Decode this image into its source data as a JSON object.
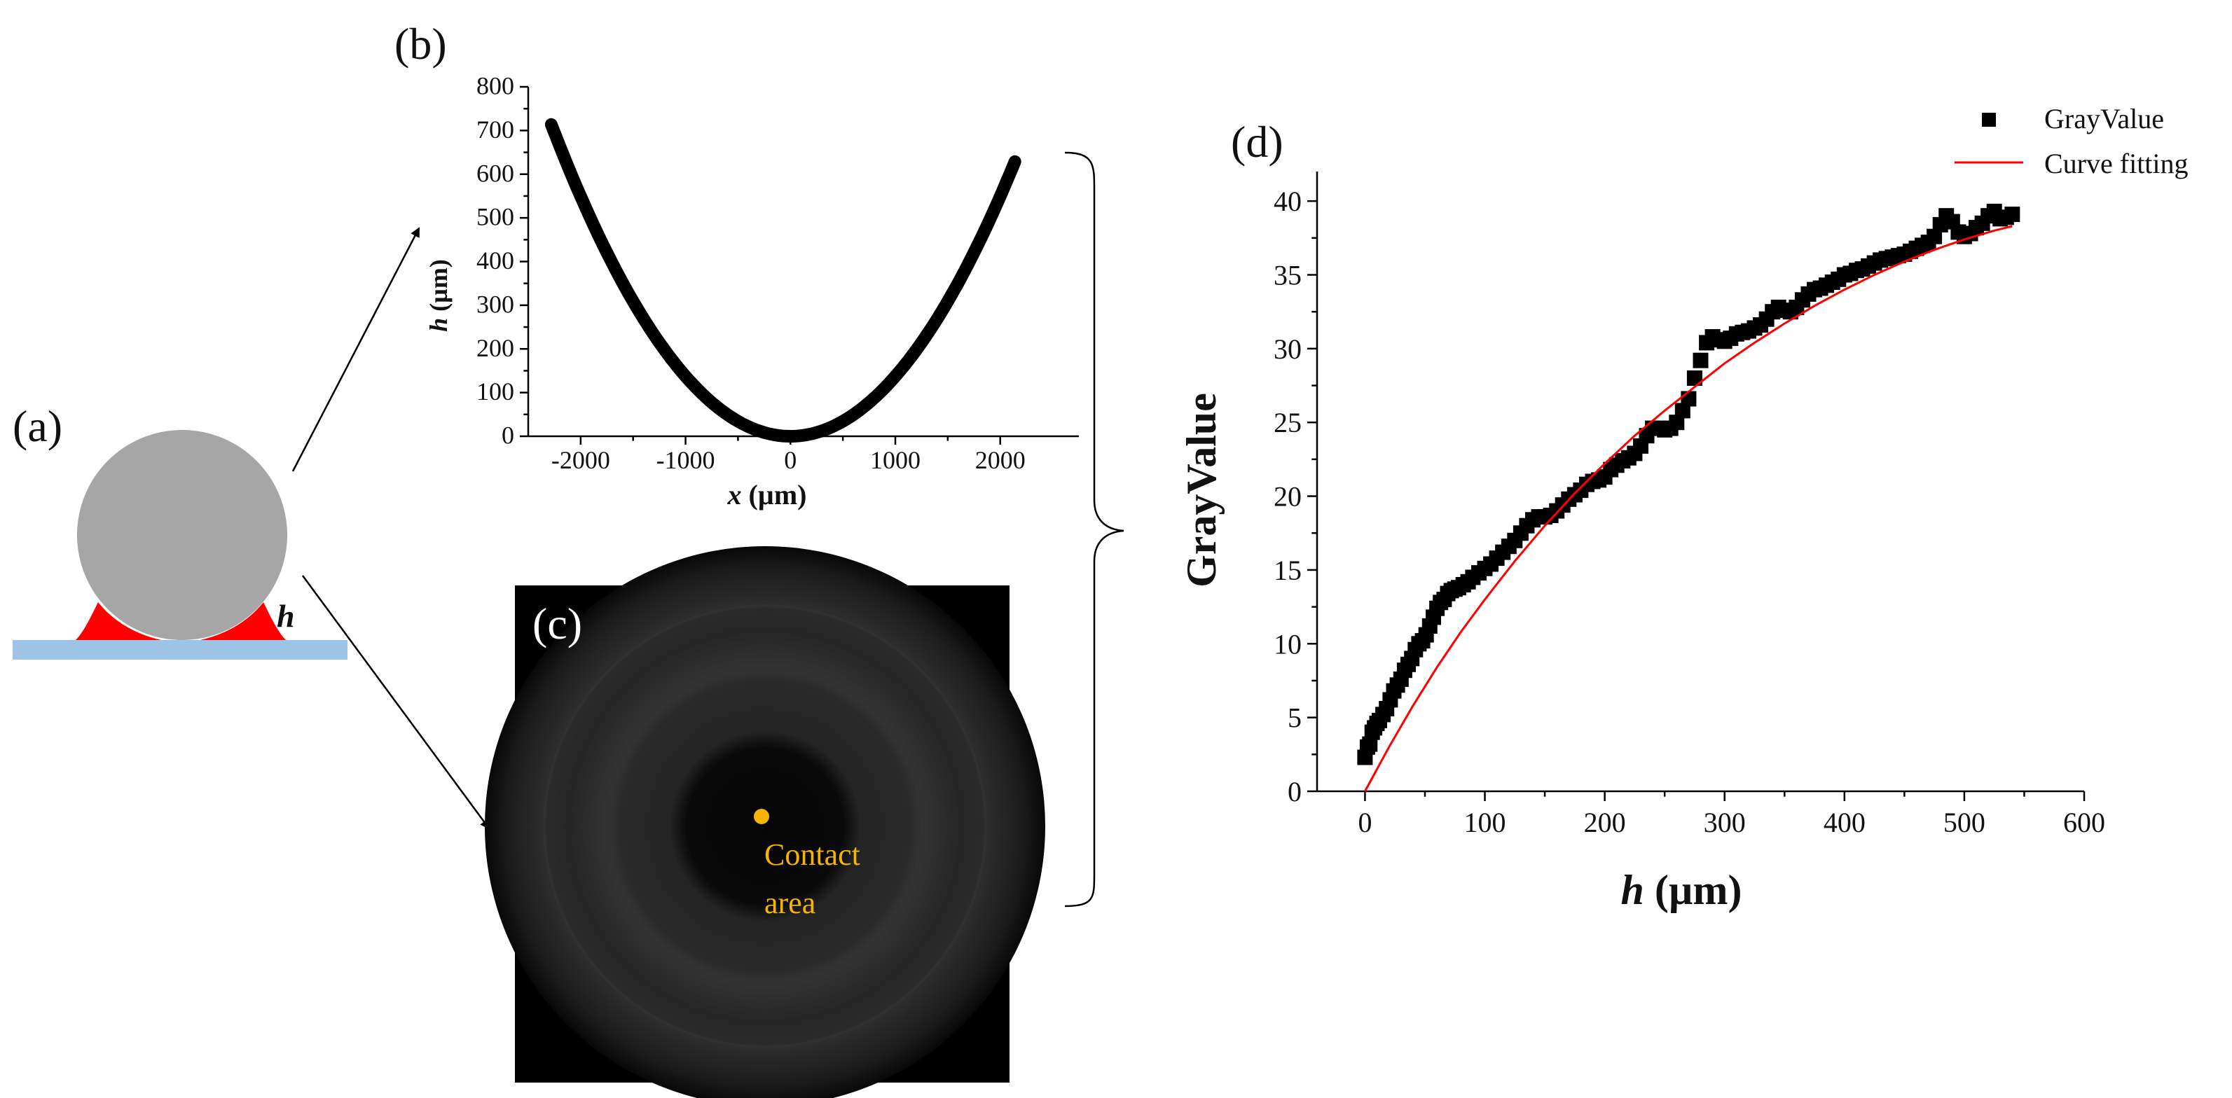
{
  "figure": {
    "panel_a": {
      "label": "(a)",
      "h_label": "h",
      "colors": {
        "sphere": "#a6a6a6",
        "liquid": "#ff0000",
        "plate": "#9dc3e6"
      }
    },
    "panel_c": {
      "label": "(c)",
      "annotation_line1": "Contact",
      "annotation_line2": "area",
      "annotation_color": "#f4b400"
    }
  },
  "chart_data": [
    {
      "id": "b",
      "panel_label": "(b)",
      "type": "line",
      "xlabel_italic": "x",
      "xlabel_unit": " (µm)",
      "ylabel_italic": "h",
      "ylabel_unit": " (µm)",
      "xlim": [
        -2500,
        2750
      ],
      "ylim": [
        0,
        800
      ],
      "xticks": [
        -2000,
        -1000,
        0,
        1000,
        2000
      ],
      "yticks": [
        0,
        100,
        200,
        300,
        400,
        500,
        600,
        700,
        800
      ],
      "x_range": [
        -2280,
        2140
      ],
      "curve_coefficient": 0.0001373,
      "series": [
        {
          "name": "profile",
          "x": [
            -2280,
            -2000,
            -1500,
            -1000,
            -500,
            0,
            500,
            1000,
            1500,
            2000,
            2140
          ],
          "y": [
            713,
            549,
            309,
            137,
            34,
            0,
            34,
            137,
            309,
            549,
            629
          ]
        }
      ]
    },
    {
      "id": "d",
      "panel_label": "(d)",
      "type": "scatter",
      "xlabel_italic": "h",
      "xlabel_unit": " (µm)",
      "ylabel": "GrayValue",
      "xlim": [
        -40,
        600
      ],
      "ylim": [
        0,
        42
      ],
      "xticks": [
        0,
        100,
        200,
        300,
        400,
        500,
        600
      ],
      "yticks": [
        0,
        5,
        10,
        15,
        20,
        25,
        30,
        35,
        40
      ],
      "legend": [
        "GrayValue",
        "Curve fitting"
      ],
      "legend_position": "top-right",
      "series": [
        {
          "name": "GrayValue",
          "color": "#000000",
          "marker": "square",
          "x": [
            0,
            2,
            4,
            6,
            8,
            10,
            12,
            15,
            18,
            21,
            24,
            27,
            30,
            33,
            36,
            39,
            42,
            45,
            48,
            51,
            54,
            57,
            60,
            63,
            66,
            69,
            72,
            75,
            78,
            82,
            86,
            90,
            95,
            100,
            105,
            110,
            115,
            120,
            125,
            130,
            135,
            140,
            145,
            150,
            155,
            160,
            165,
            170,
            175,
            180,
            185,
            190,
            195,
            200,
            205,
            210,
            215,
            220,
            225,
            230,
            235,
            240,
            245,
            250,
            255,
            260,
            265,
            270,
            275,
            280,
            285,
            290,
            295,
            300,
            305,
            310,
            315,
            320,
            325,
            330,
            335,
            340,
            345,
            350,
            355,
            360,
            365,
            370,
            375,
            380,
            385,
            390,
            395,
            400,
            405,
            410,
            415,
            420,
            425,
            430,
            435,
            440,
            445,
            450,
            455,
            460,
            465,
            470,
            475,
            480,
            485,
            490,
            495,
            500,
            505,
            510,
            515,
            520,
            525,
            530,
            535,
            540
          ],
          "y": [
            2.3,
            3.0,
            3.2,
            4.0,
            4.3,
            4.6,
            4.8,
            5.2,
            5.6,
            6.2,
            6.8,
            7.2,
            7.6,
            8.2,
            8.6,
            9.0,
            9.6,
            10.0,
            10.2,
            10.6,
            11.2,
            11.8,
            12.4,
            12.8,
            13.0,
            13.4,
            13.6,
            13.7,
            13.8,
            14.0,
            14.2,
            14.5,
            14.8,
            15.1,
            15.4,
            15.8,
            16.2,
            16.6,
            17.0,
            17.5,
            18.0,
            18.4,
            18.6,
            18.6,
            18.7,
            19.0,
            19.4,
            19.8,
            20.1,
            20.4,
            20.8,
            21.0,
            21.1,
            21.3,
            21.8,
            22.1,
            22.4,
            22.6,
            22.9,
            23.4,
            24.1,
            24.6,
            24.6,
            24.5,
            24.6,
            25.0,
            25.8,
            26.6,
            28.0,
            29.2,
            30.4,
            30.8,
            30.6,
            30.5,
            30.7,
            31.0,
            31.1,
            31.2,
            31.4,
            31.6,
            32.0,
            32.5,
            32.8,
            32.6,
            32.5,
            32.8,
            33.3,
            33.7,
            34.0,
            34.1,
            34.3,
            34.5,
            34.7,
            35.0,
            35.1,
            35.3,
            35.4,
            35.6,
            35.8,
            36.0,
            36.1,
            36.2,
            36.3,
            36.4,
            36.6,
            36.8,
            37.0,
            37.2,
            37.6,
            38.4,
            39.0,
            38.6,
            37.9,
            37.6,
            37.8,
            38.2,
            38.5,
            39.0,
            39.3,
            38.8,
            38.9,
            39.1
          ]
        },
        {
          "name": "Curve fitting",
          "color": "#ff0000",
          "type": "line",
          "x": [
            0,
            20,
            40,
            60,
            80,
            100,
            125,
            150,
            175,
            200,
            225,
            250,
            275,
            300,
            325,
            350,
            375,
            400,
            425,
            450,
            475,
            500,
            525,
            540
          ],
          "y": [
            0.0,
            3.0,
            5.8,
            8.4,
            10.8,
            13.0,
            15.6,
            18.0,
            20.2,
            22.2,
            24.1,
            25.8,
            27.4,
            29.0,
            30.4,
            31.7,
            32.9,
            34.0,
            35.0,
            35.9,
            36.7,
            37.4,
            38.0,
            38.3
          ]
        }
      ]
    }
  ]
}
